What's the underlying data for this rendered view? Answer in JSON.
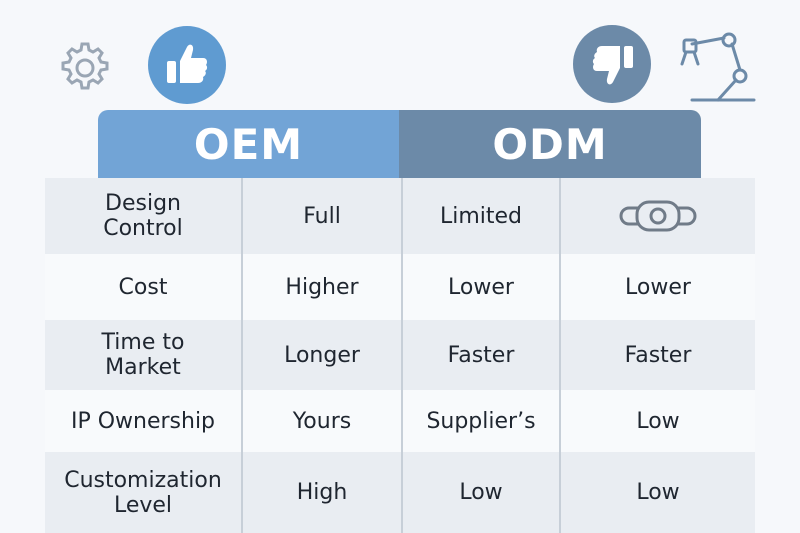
{
  "header": {
    "oem_label": "OEM",
    "odm_label": "ODM"
  },
  "icons": {
    "top_left": "gear-icon",
    "thumbs_up": "thumbs-up-icon",
    "thumbs_down": "thumbs-down-icon",
    "top_right": "robot-arm-icon",
    "cell_icon": "connector-icon"
  },
  "colors": {
    "oem": "#72a4d6",
    "odm": "#6c8aa8",
    "row_shade": "#e9edf2"
  },
  "rows": [
    {
      "label": "Design\nControl",
      "oem": "Full",
      "odm": "Limited",
      "extra": ""
    },
    {
      "label": "Cost",
      "oem": "Higher",
      "odm": "Lower",
      "extra": "Lower"
    },
    {
      "label": "Time to\nMarket",
      "oem": "Longer",
      "odm": "Faster",
      "extra": "Faster"
    },
    {
      "label": "IP Ownership",
      "oem": "Yours",
      "odm": "Supplier’s",
      "extra": "Low"
    },
    {
      "label": "Customization\nLevel",
      "oem": "High",
      "odm": "Low",
      "extra": "Low"
    }
  ]
}
